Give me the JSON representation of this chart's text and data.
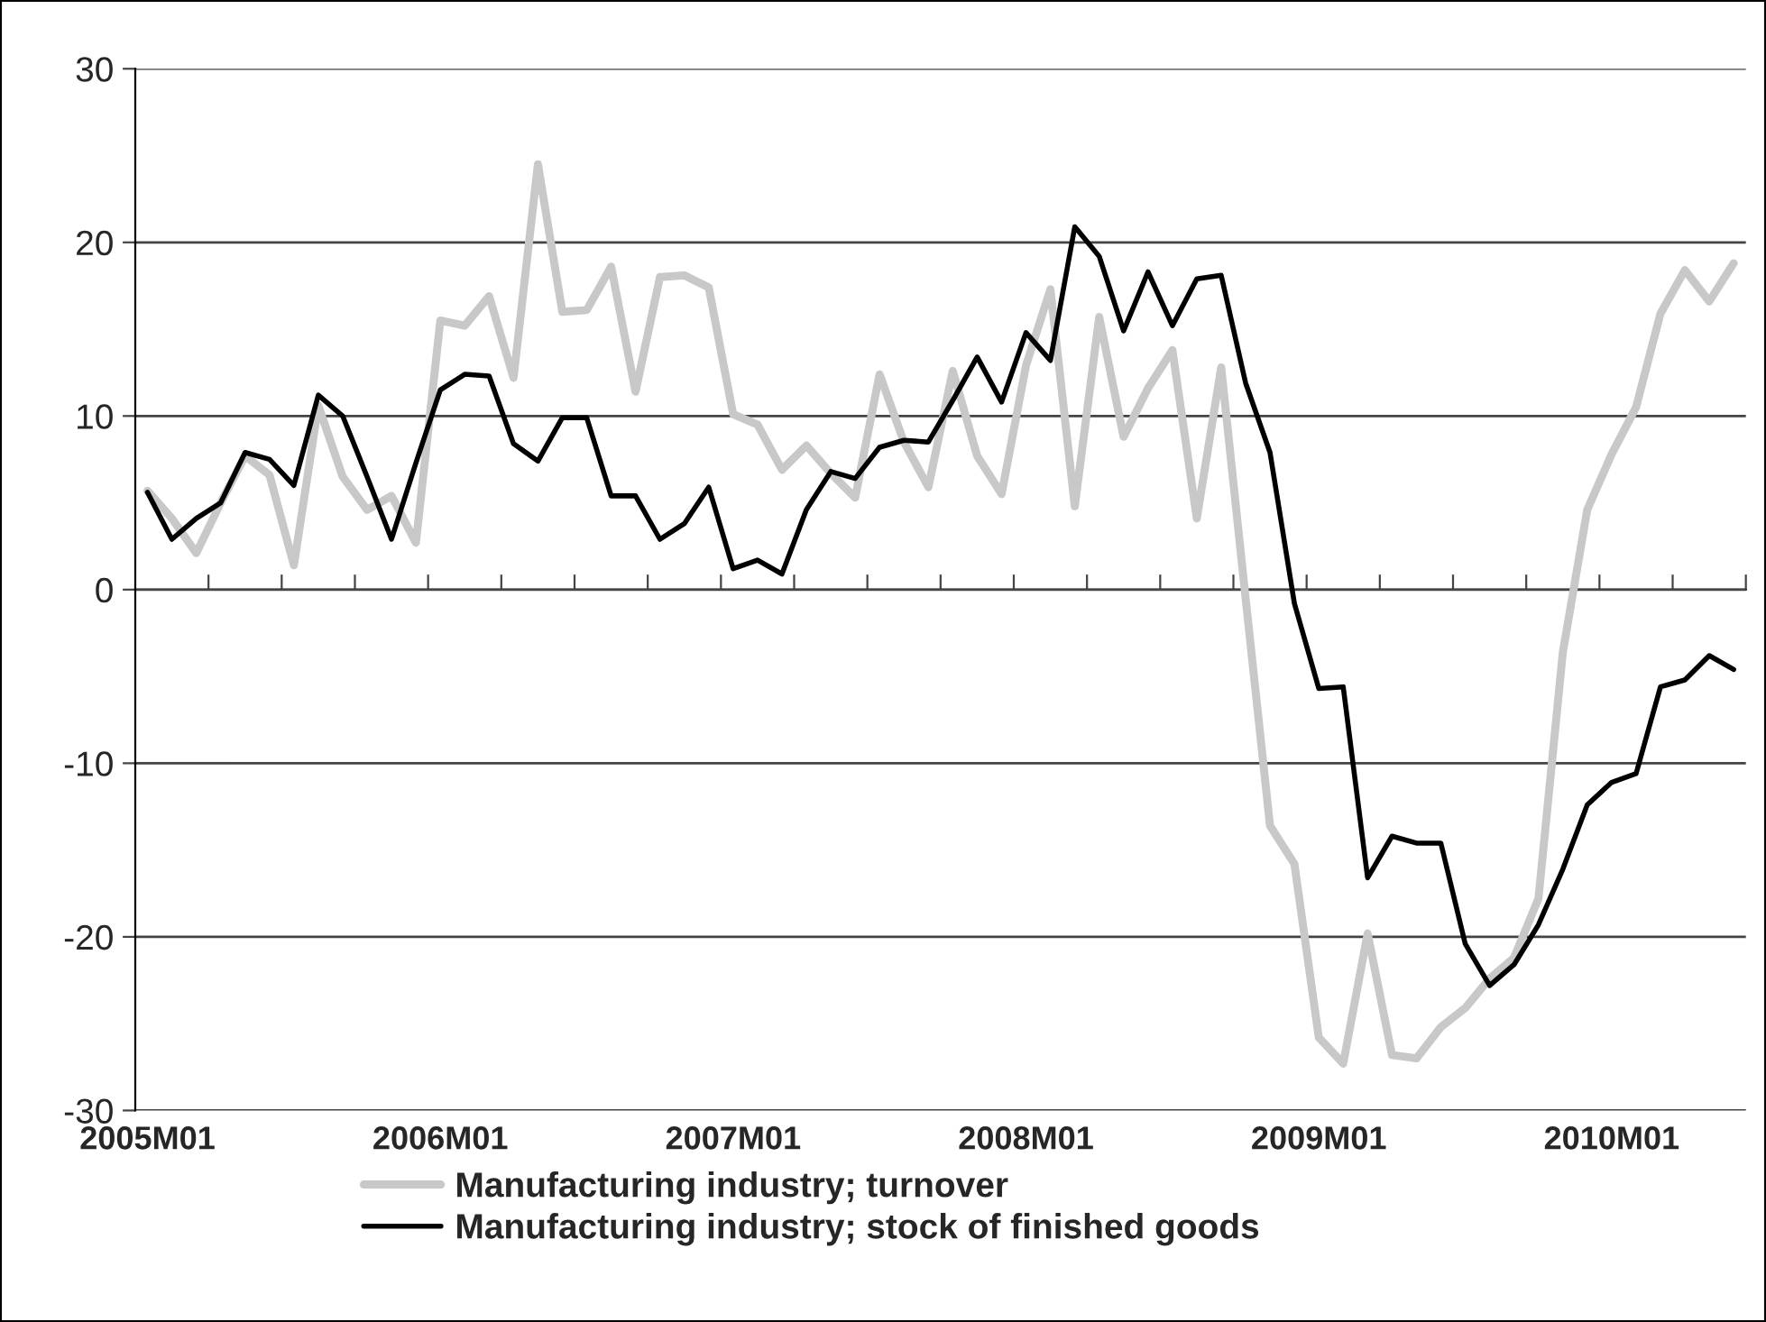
{
  "chart_data": {
    "type": "line",
    "categories": [
      "2005M01",
      null,
      null,
      null,
      null,
      null,
      null,
      null,
      null,
      null,
      null,
      null,
      "2006M01",
      null,
      null,
      null,
      null,
      null,
      null,
      null,
      null,
      null,
      null,
      null,
      "2007M01",
      null,
      null,
      null,
      null,
      null,
      null,
      null,
      null,
      null,
      null,
      null,
      "2008M01",
      null,
      null,
      null,
      null,
      null,
      null,
      null,
      null,
      null,
      null,
      null,
      "2009M01",
      null,
      null,
      null,
      null,
      null,
      null,
      null,
      null,
      null,
      null,
      null,
      "2010M01",
      null,
      null,
      null,
      null,
      null
    ],
    "series": [
      {
        "name": "Manufacturing industry; turnover",
        "color": "#c8c8c8",
        "values": [
          5.7,
          4.1,
          2.1,
          5.0,
          7.7,
          6.6,
          1.4,
          10.6,
          6.5,
          4.6,
          5.4,
          2.7,
          15.5,
          15.2,
          16.9,
          12.2,
          24.5,
          16.0,
          16.1,
          18.6,
          11.4,
          18.0,
          18.1,
          17.4,
          10.1,
          9.5,
          6.9,
          8.3,
          6.7,
          5.3,
          12.4,
          8.5,
          5.9,
          12.6,
          7.7,
          5.5,
          12.9,
          17.3,
          4.8,
          15.7,
          8.8,
          11.6,
          13.8,
          4.1,
          12.8,
          -0.5,
          -13.6,
          -15.8,
          -25.8,
          -27.3,
          -19.8,
          -26.8,
          -27.0,
          -25.2,
          -24.1,
          -22.4,
          -21.2,
          -17.8,
          -3.6,
          4.6,
          7.8,
          10.5,
          15.9,
          18.4,
          16.6,
          18.8
        ]
      },
      {
        "name": "Manufacturing industry; stock of finished goods",
        "color": "#000000",
        "values": [
          5.6,
          2.9,
          4.1,
          5.0,
          7.9,
          7.5,
          6.0,
          11.2,
          10.0,
          6.5,
          2.9,
          7.3,
          11.5,
          12.4,
          12.3,
          8.4,
          7.4,
          9.9,
          9.9,
          5.4,
          5.4,
          2.9,
          3.8,
          5.9,
          1.2,
          1.7,
          0.9,
          4.6,
          6.8,
          6.4,
          8.2,
          8.6,
          8.5,
          10.9,
          13.4,
          10.8,
          14.8,
          13.2,
          20.9,
          19.2,
          14.9,
          18.3,
          15.2,
          17.9,
          18.1,
          11.9,
          7.9,
          -0.8,
          -5.7,
          -5.6,
          -16.6,
          -14.2,
          -14.6,
          -14.6,
          -20.4,
          -22.8,
          -21.6,
          -19.3,
          -16.1,
          -12.4,
          -11.1,
          -10.6,
          -5.6,
          -5.2,
          -3.8,
          -4.6
        ]
      }
    ],
    "ylim": [
      -30,
      30
    ],
    "yticks": [
      -30,
      -20,
      -10,
      0,
      10,
      20,
      30
    ],
    "grid": "y",
    "legend": "bottom",
    "marker": "none",
    "line_style": "solid"
  }
}
